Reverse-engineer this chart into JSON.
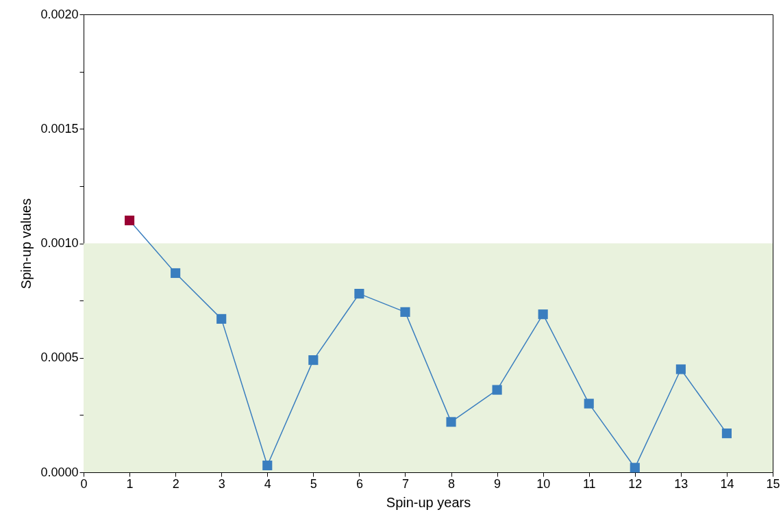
{
  "chart_data": {
    "type": "line",
    "xlabel": "Spin-up years",
    "ylabel": "Spin-up values",
    "x": [
      1,
      2,
      3,
      4,
      5,
      6,
      7,
      8,
      9,
      10,
      11,
      12,
      13,
      14
    ],
    "series": [
      {
        "color": "#3a7ebf",
        "colors": [
          "#990033",
          "#3a7ebf",
          "#3a7ebf",
          "#3a7ebf",
          "#3a7ebf",
          "#3a7ebf",
          "#3a7ebf",
          "#3a7ebf",
          "#3a7ebf",
          "#3a7ebf",
          "#3a7ebf",
          "#3a7ebf",
          "#3a7ebf",
          "#3a7ebf"
        ],
        "values": [
          0.0011,
          0.00087,
          0.00067,
          3e-05,
          0.00049,
          0.00078,
          0.0007,
          0.00022,
          0.00036,
          0.00069,
          0.0003,
          2e-05,
          0.00045,
          0.00017
        ]
      }
    ],
    "xlim": [
      0,
      15
    ],
    "xticks": [
      0,
      1,
      2,
      3,
      4,
      5,
      6,
      7,
      8,
      9,
      10,
      11,
      12,
      13,
      14,
      15
    ],
    "ylim": [
      0,
      0.002
    ],
    "yticks": [
      {
        "value": 0,
        "label": "0.0000"
      },
      {
        "value": 0.00025,
        "label": null
      },
      {
        "value": 0.0005,
        "label": "0.0005"
      },
      {
        "value": 0.00075,
        "label": null
      },
      {
        "value": 0.001,
        "label": "0.0010"
      },
      {
        "value": 0.00125,
        "label": null
      },
      {
        "value": 0.0015,
        "label": "0.0015"
      },
      {
        "value": 0.00175,
        "label": null
      },
      {
        "value": 0.002,
        "label": "0.0020"
      }
    ],
    "bands": [
      {
        "axis": "y",
        "from": 0,
        "to": 0.001,
        "color": "#e9f2dd"
      }
    ],
    "grid": false,
    "marker": "square",
    "line_style": "solid"
  }
}
